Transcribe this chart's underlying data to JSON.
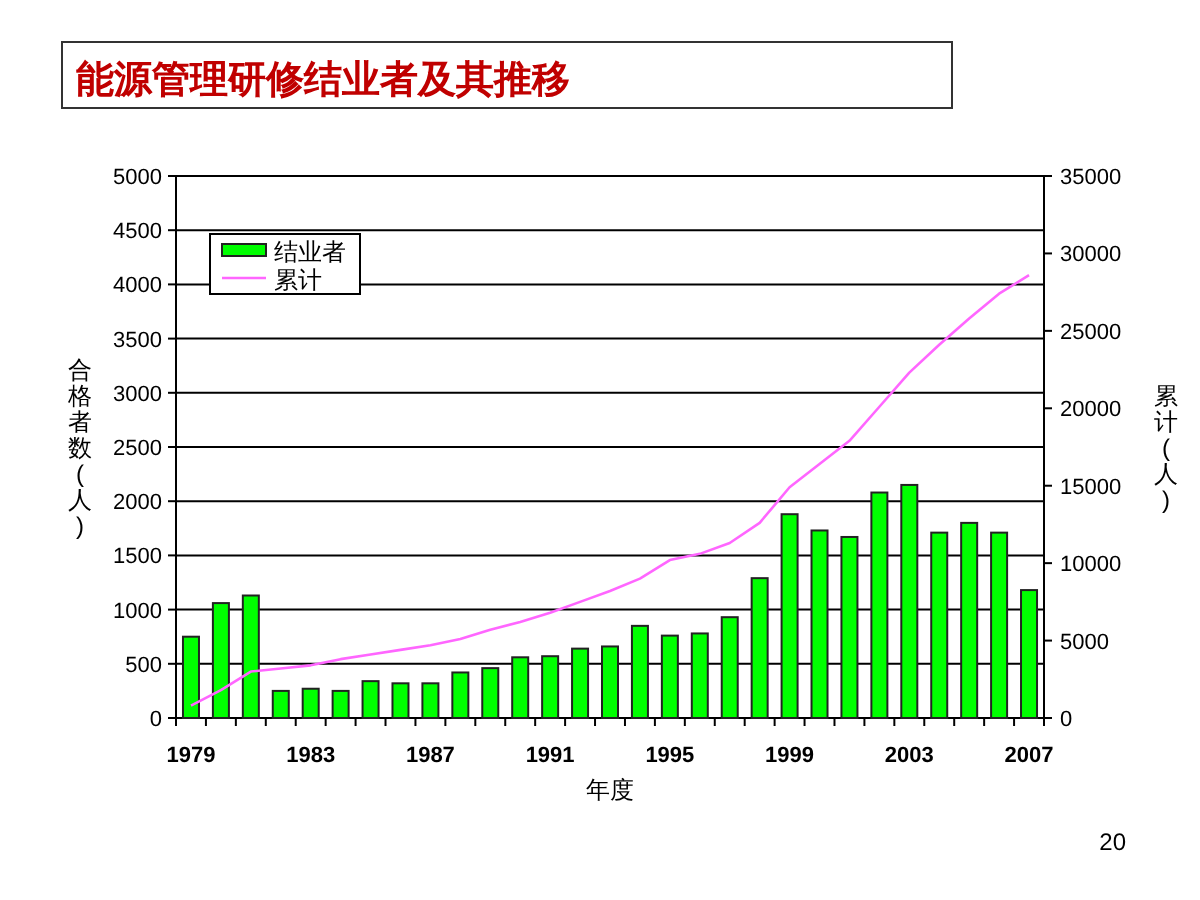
{
  "chart_data": {
    "type": "bar",
    "title": "能源管理研修结业者及其推移",
    "xlabel": "年度",
    "ylabel": "合格者数(人)",
    "y2label": "累计(人)",
    "categories": [
      "1979",
      null,
      null,
      null,
      "1983",
      null,
      null,
      null,
      "1987",
      null,
      null,
      null,
      "1991",
      null,
      null,
      null,
      "1995",
      null,
      null,
      null,
      "1999",
      null,
      null,
      null,
      "2003",
      null,
      null,
      null,
      "2007"
    ],
    "series": [
      {
        "name": "结业者",
        "color": "#00ff00",
        "values": [
          750,
          1060,
          1130,
          250,
          270,
          250,
          340,
          320,
          320,
          420,
          460,
          560,
          570,
          640,
          660,
          850,
          760,
          780,
          930,
          1290,
          1880,
          1730,
          1670,
          2080,
          2150,
          1710,
          1800,
          1710,
          1180
        ]
      },
      {
        "name": "累计",
        "type": "line",
        "axis": "y2",
        "color": "#ff66ff",
        "values": [
          800,
          1800,
          3000,
          3200,
          3400,
          3800,
          4100,
          4400,
          4700,
          5100,
          5700,
          6200,
          6800,
          7500,
          8200,
          9000,
          10200,
          10600,
          11300,
          12600,
          14900,
          16400,
          17900,
          20100,
          22300,
          24100,
          25800,
          27400,
          28600
        ]
      }
    ],
    "ylim": [
      0,
      5000
    ],
    "yticks": [
      0,
      500,
      1000,
      1500,
      2000,
      2500,
      3000,
      3500,
      4000,
      4500,
      5000
    ],
    "y2lim": [
      0,
      35000
    ],
    "y2ticks": [
      0,
      5000,
      10000,
      15000,
      20000,
      25000,
      30000,
      35000
    ],
    "grid": "y",
    "legend": "top left",
    "annotations": [
      "20"
    ]
  }
}
